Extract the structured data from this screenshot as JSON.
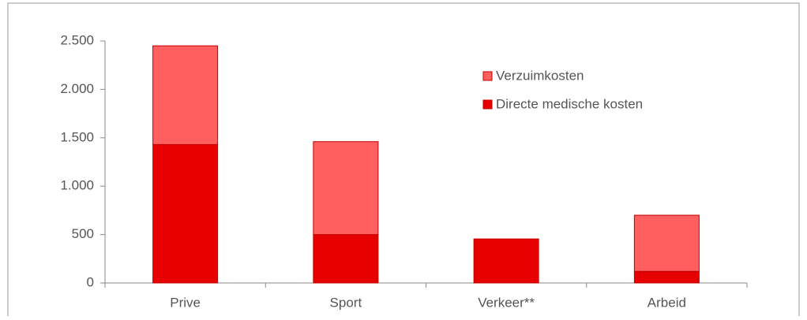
{
  "chart_data": {
    "type": "stacked_bar",
    "categories": [
      "Prive",
      "Sport",
      "Verkeer**",
      "Arbeid"
    ],
    "series": [
      {
        "name": "Directe medische kosten",
        "color": "#e60000",
        "values": [
          1430,
          500,
          455,
          120
        ]
      },
      {
        "name": "Verzuimkosten",
        "color": "#ff5f5f",
        "values": [
          1020,
          960,
          0,
          580
        ]
      }
    ],
    "ylim": [
      0,
      2500
    ],
    "yticks": [
      0,
      500,
      {
        "value": 1000,
        "label": "1.000"
      },
      {
        "value": 1500,
        "label": "1.500"
      },
      {
        "value": 2000,
        "label": "2.000"
      },
      {
        "value": 2500,
        "label": "2.500"
      }
    ],
    "grid": false,
    "legend": "upper right"
  }
}
